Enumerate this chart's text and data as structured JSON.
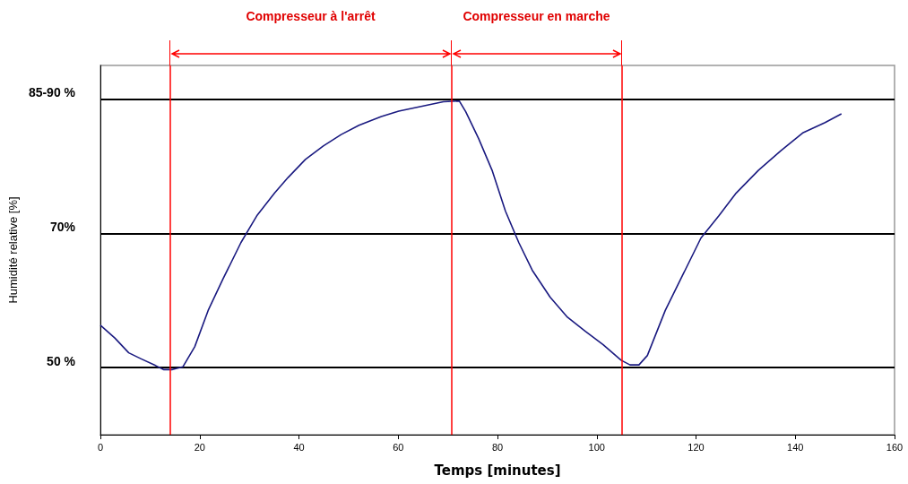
{
  "chart_data": {
    "type": "line",
    "xlabel": "Temps [minutes]",
    "ylabel": "Humidité relative [%]",
    "x": [
      0,
      2.9,
      5.7,
      8.2,
      11.1,
      12.7,
      14.5,
      16.6,
      19.0,
      21.7,
      24.7,
      28.3,
      31.5,
      35.1,
      37.8,
      41.3,
      44.9,
      48.5,
      52.1,
      56.6,
      60.1,
      64.6,
      69.1,
      72.3,
      73.6,
      76.2,
      78.9,
      81.6,
      84.3,
      87.0,
      90.6,
      94.1,
      97.7,
      101.3,
      104.9,
      106.7,
      108.5,
      110.2,
      113.8,
      117.4,
      121.0,
      124.6,
      128.1,
      132.6,
      137.1,
      141.6,
      146.0,
      149.3
    ],
    "series": [
      {
        "color": "#1a1a80",
        "values": [
          56.3,
          54.4,
          52.2,
          51.3,
          50.3,
          49.7,
          49.7,
          50.1,
          53.1,
          58.5,
          63.2,
          68.6,
          72.6,
          76.0,
          78.3,
          81.0,
          83.0,
          84.7,
          86.1,
          87.4,
          88.2,
          88.9,
          89.6,
          89.7,
          88.1,
          84.1,
          79.4,
          73.3,
          68.6,
          64.5,
          60.5,
          57.5,
          55.4,
          53.4,
          51.1,
          50.4,
          50.4,
          51.8,
          58.5,
          63.9,
          69.3,
          72.6,
          76.0,
          79.4,
          82.3,
          85.0,
          86.5,
          87.8
        ]
      }
    ],
    "xlim": [
      0,
      160
    ],
    "xticks": [
      0,
      20,
      40,
      60,
      80,
      100,
      120,
      140,
      160
    ],
    "ylim": [
      40,
      95
    ],
    "yticks": [
      {
        "value": 50,
        "label": "50 %"
      },
      {
        "value": 70,
        "label": "70%"
      },
      {
        "value": 90,
        "label": "85-90 %"
      }
    ],
    "grid": "y",
    "marker": "none",
    "line_style": "solid",
    "ref_lines": [
      {
        "axis": "x",
        "value": 14,
        "label": null,
        "color": "#ff0000"
      },
      {
        "axis": "x",
        "value": 70.7,
        "label": null,
        "color": "#ff0000"
      },
      {
        "axis": "x",
        "value": 105,
        "label": null,
        "color": "#ff0000"
      }
    ],
    "annotations": [
      "Compresseur à l'arrêt",
      "Compresseur en marche"
    ]
  }
}
